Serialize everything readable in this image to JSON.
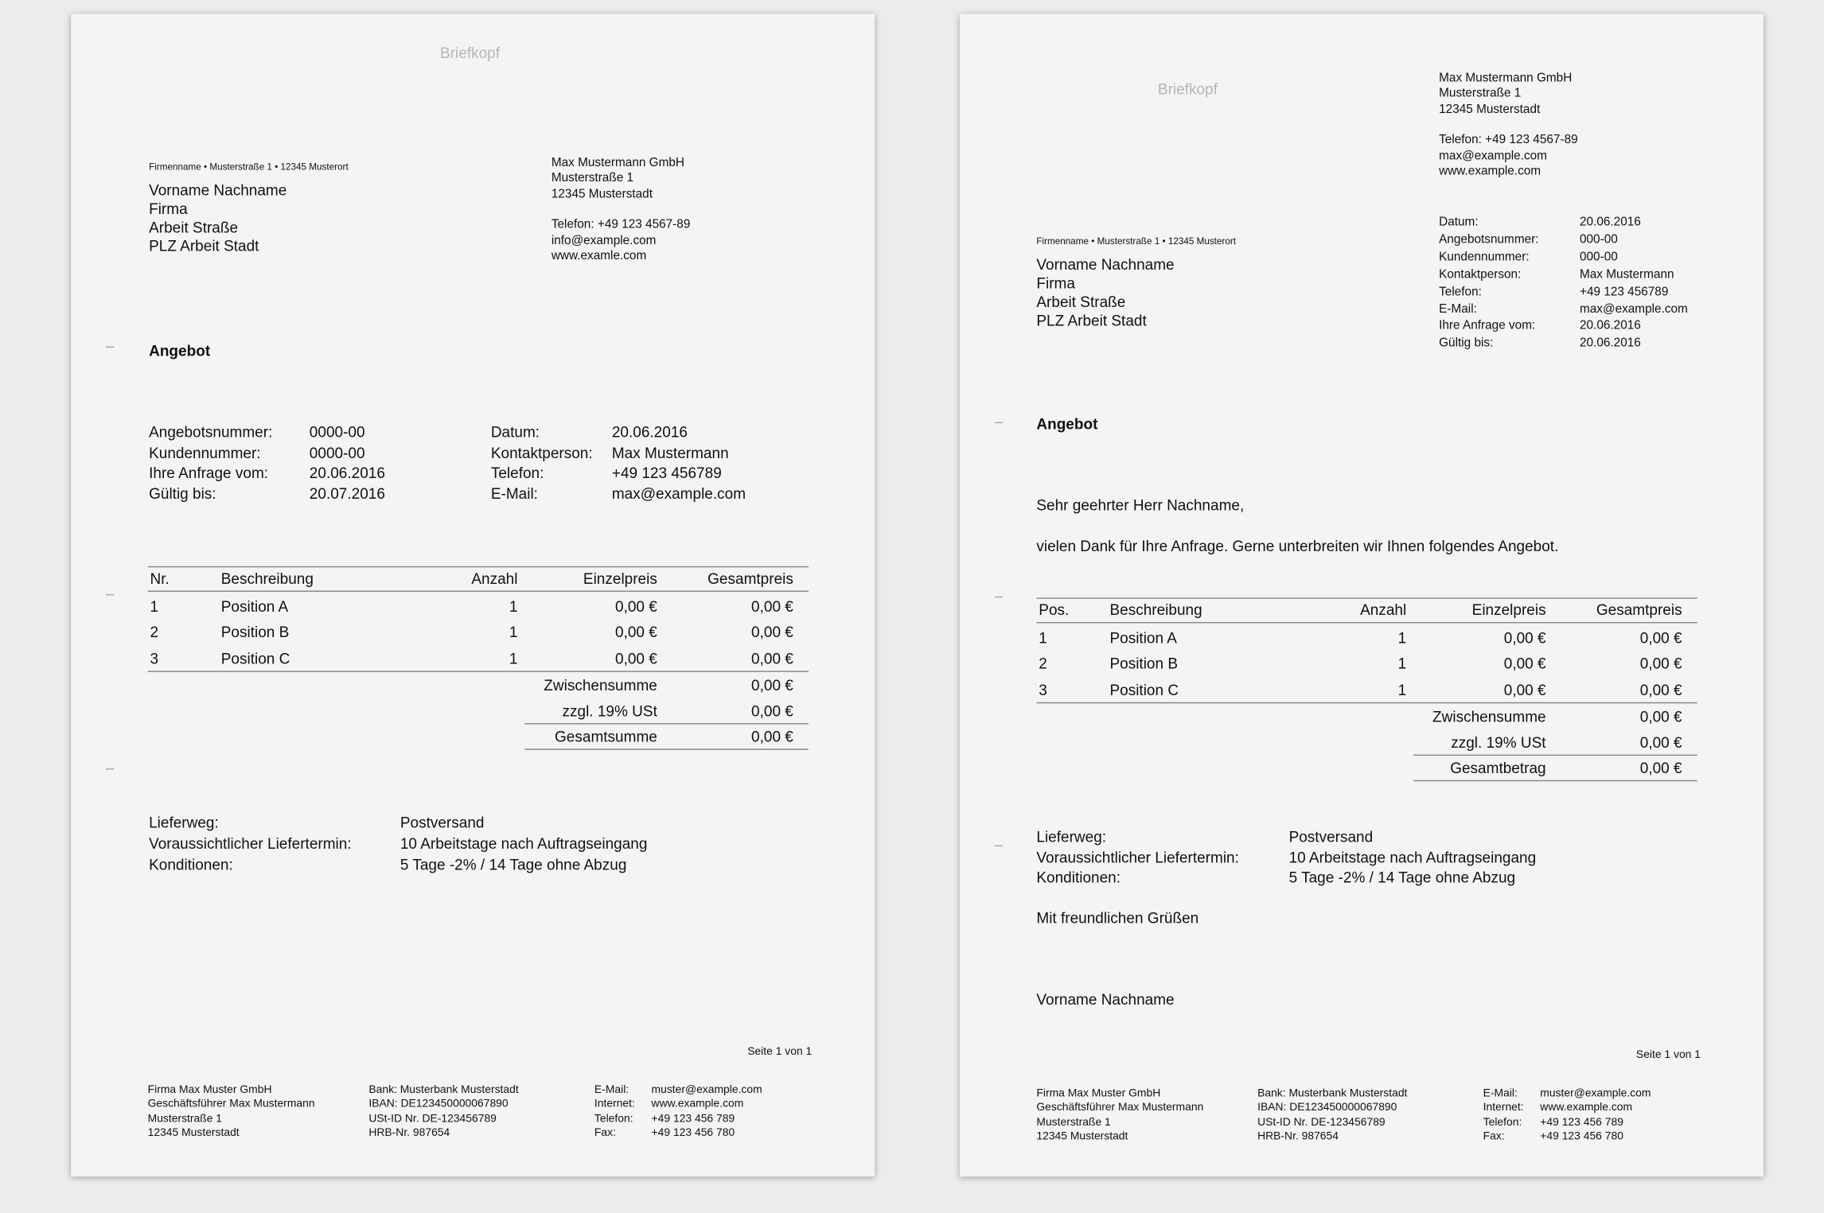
{
  "pages": [
    {
      "letterhead": "Briefkopf",
      "sender_line": "Firmenname • Musterstraße 1 • 12345 Musterort",
      "recipient": [
        "Vorname Nachname",
        "Firma",
        "Arbeit Straße",
        "PLZ Arbeit Stadt"
      ],
      "company": [
        "Max Mustermann GmbH",
        "Musterstraße 1",
        "12345 Musterstadt",
        "",
        "Telefon: +49 123 4567-89",
        "info@example.com",
        "www.examle.com"
      ],
      "title": "Angebot",
      "info_left": [
        [
          "Angebotsnummer:",
          "0000-00"
        ],
        [
          "Kundennummer:",
          "0000-00"
        ],
        [
          "Ihre Anfrage vom:",
          "20.06.2016"
        ],
        [
          "Gültig bis:",
          "20.07.2016"
        ]
      ],
      "info_right": [
        [
          "Datum:",
          "20.06.2016"
        ],
        [
          "Kontaktperson:",
          "Max Mustermann"
        ],
        [
          "Telefon:",
          "+49 123 456789"
        ],
        [
          "E-Mail:",
          "max@example.com"
        ]
      ],
      "table": {
        "headers": [
          "Nr.",
          "Beschreibung",
          "Anzahl",
          "Einzelpreis",
          "Gesamtpreis"
        ],
        "rows": [
          [
            "1",
            "Position A",
            "1",
            "0,00 €",
            "0,00 €"
          ],
          [
            "2",
            "Position B",
            "1",
            "0,00 €",
            "0,00 €"
          ],
          [
            "3",
            "Position C",
            "1",
            "0,00 €",
            "0,00 €"
          ]
        ],
        "summary": [
          [
            "Zwischensumme",
            "0,00 €"
          ],
          [
            "zzgl. 19% USt",
            "0,00 €"
          ],
          [
            "Gesamtsumme",
            "0,00 €"
          ]
        ]
      },
      "delivery": [
        [
          "Lieferweg:",
          "Postversand"
        ],
        [
          "Voraussichtlicher Liefertermin:",
          "10 Arbeitstage nach Auftragseingang"
        ],
        [
          "Konditionen:",
          "5 Tage -2% / 14 Tage ohne Abzug"
        ]
      ],
      "page_number": "Seite 1 von 1",
      "footer": {
        "col1": [
          "Firma Max Muster GmbH",
          "Geschäftsführer Max Mustermann",
          "Musterstraße 1",
          "12345 Musterstadt"
        ],
        "col2": [
          "Bank: Musterbank Musterstadt",
          "IBAN: DE123450000067890",
          "USt-ID Nr. DE-123456789",
          "HRB-Nr. 987654"
        ],
        "col3": [
          [
            "E-Mail:",
            "muster@example.com"
          ],
          [
            "Internet:",
            "www.example.com"
          ],
          [
            "Telefon:",
            "+49 123 456 789"
          ],
          [
            "Fax:",
            "+49 123 456 780"
          ]
        ]
      }
    },
    {
      "letterhead": "Briefkopf",
      "company": [
        "Max Mustermann GmbH",
        "Musterstraße 1",
        "12345 Musterstadt",
        "",
        "Telefon: +49 123 4567-89",
        "max@example.com",
        "www.example.com"
      ],
      "info": [
        [
          "Datum:",
          "20.06.2016"
        ],
        [
          "Angebotsnummer:",
          "000-00"
        ],
        [
          "Kundennummer:",
          "000-00"
        ],
        [
          "Kontaktperson:",
          "Max Mustermann"
        ],
        [
          "Telefon:",
          "+49 123 456789"
        ],
        [
          "E-Mail:",
          "max@example.com"
        ],
        [
          "Ihre Anfrage vom:",
          "20.06.2016"
        ],
        [
          "Gültig bis:",
          "20.06.2016"
        ]
      ],
      "sender_line": "Firmenname • Musterstraße 1 • 12345 Musterort",
      "recipient": [
        "Vorname Nachname",
        "Firma",
        "Arbeit Straße",
        "PLZ Arbeit Stadt"
      ],
      "title": "Angebot",
      "salutation": "Sehr geehrter Herr Nachname,",
      "intro": "vielen Dank für Ihre Anfrage. Gerne unterbreiten wir Ihnen folgendes Angebot.",
      "table": {
        "headers": [
          "Pos.",
          "Beschreibung",
          "Anzahl",
          "Einzelpreis",
          "Gesamtpreis"
        ],
        "rows": [
          [
            "1",
            "Position A",
            "1",
            "0,00 €",
            "0,00 €"
          ],
          [
            "2",
            "Position B",
            "1",
            "0,00 €",
            "0,00 €"
          ],
          [
            "3",
            "Position C",
            "1",
            "0,00 €",
            "0,00 €"
          ]
        ],
        "summary": [
          [
            "Zwischensumme",
            "0,00 €"
          ],
          [
            "zzgl. 19% USt",
            "0,00 €"
          ],
          [
            "Gesamtbetrag",
            "0,00 €"
          ]
        ]
      },
      "delivery": [
        [
          "Lieferweg:",
          "Postversand"
        ],
        [
          "Voraussichtlicher Liefertermin:",
          "10 Arbeitstage nach Auftragseingang"
        ],
        [
          "Konditionen:",
          "5 Tage -2% / 14 Tage ohne Abzug"
        ]
      ],
      "closing": "Mit freundlichen Grüßen",
      "signature": "Vorname Nachname",
      "page_number": "Seite 1 von 1",
      "footer": {
        "col1": [
          "Firma Max Muster GmbH",
          "Geschäftsführer Max Mustermann",
          "Musterstraße 1",
          "12345 Musterstadt"
        ],
        "col2": [
          "Bank: Musterbank Musterstadt",
          "IBAN: DE123450000067890",
          "USt-ID Nr. DE-123456789",
          "HRB-Nr. 987654"
        ],
        "col3": [
          [
            "E-Mail:",
            "muster@example.com"
          ],
          [
            "Internet:",
            "www.example.com"
          ],
          [
            "Telefon:",
            "+49 123 456 789"
          ],
          [
            "Fax:",
            "+49 123 456 780"
          ]
        ]
      }
    }
  ]
}
